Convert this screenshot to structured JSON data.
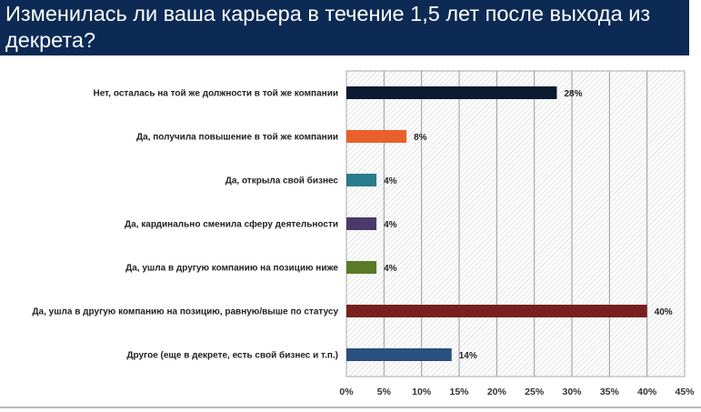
{
  "chart_data": {
    "type": "bar",
    "orientation": "horizontal",
    "title": "Изменилась ли ваша карьера в течение 1,5 лет после выхода из декрета?",
    "categories": [
      "Нет, осталась на той же должности в той же компании",
      "Да, получила повышение в той же компании",
      "Да, открыла свой бизнес",
      "Да, кардинально сменила сферу деятельности",
      "Да, ушла в другую компанию на позицию ниже",
      "Да, ушла в другую компанию на позицию, равную/выше по статусу",
      "Другое (еще в декрете, есть свой бизнес и т.п.)"
    ],
    "values": [
      28,
      8,
      4,
      4,
      4,
      40,
      14
    ],
    "value_labels": [
      "28%",
      "8%",
      "4%",
      "4%",
      "4%",
      "40%",
      "14%"
    ],
    "colors": [
      "#0b1a33",
      "#e8602c",
      "#2a7b8c",
      "#4a3a6b",
      "#5a7a2a",
      "#7a1f1f",
      "#2a4f80"
    ],
    "xlim": [
      0,
      45
    ],
    "xticks": [
      "0%",
      "5%",
      "10%",
      "15%",
      "20%",
      "25%",
      "30%",
      "35%",
      "40%",
      "45%"
    ],
    "grid": true,
    "xlabel": "",
    "ylabel": ""
  }
}
